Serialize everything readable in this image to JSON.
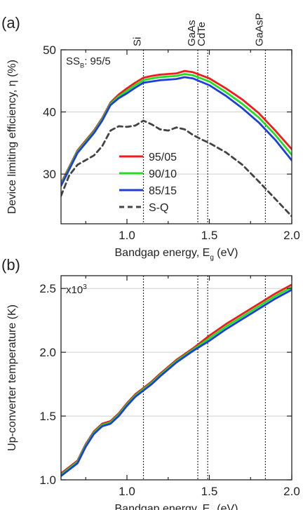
{
  "chart_data": [
    {
      "panel": "(a)",
      "type": "line",
      "xlabel": "Bandgap energy, E",
      "xlabel_sub": "g",
      "xlabel_unit": " (eV)",
      "ylabel": "Device limiting efficiency, η (%)",
      "annotation": "SS",
      "annotation_sub": "B",
      "annotation_tail": ": 95/5",
      "xlim": [
        0.6,
        2.0
      ],
      "ylim": [
        22,
        50
      ],
      "xticks": [
        1.0,
        1.5,
        2.0
      ],
      "xtick_labels": [
        "1.0",
        "1.5",
        "2.0"
      ],
      "yticks": [
        30,
        40,
        50
      ],
      "ytick_labels": [
        "30",
        "40",
        "50"
      ],
      "grid": "horizontal",
      "legend_position": "bottom-left",
      "vlines": [
        {
          "x": 1.1,
          "label": "Si"
        },
        {
          "x": 1.43,
          "label": "GaAs"
        },
        {
          "x": 1.49,
          "label": "CdTe"
        },
        {
          "x": 1.84,
          "label": "GaAsP"
        }
      ],
      "series": [
        {
          "name": "95/05",
          "color": "#ee1c1c",
          "style": "solid",
          "x": [
            0.6,
            0.7,
            0.8,
            0.85,
            0.9,
            0.95,
            1.0,
            1.05,
            1.1,
            1.15,
            1.2,
            1.25,
            1.3,
            1.35,
            1.4,
            1.5,
            1.6,
            1.7,
            1.8,
            1.9,
            2.0
          ],
          "y": [
            28.5,
            33.8,
            37.0,
            39.0,
            41.5,
            42.8,
            43.8,
            44.7,
            45.5,
            45.8,
            46.0,
            46.1,
            46.2,
            46.6,
            46.4,
            45.4,
            43.8,
            42.0,
            39.8,
            37.0,
            34.0
          ]
        },
        {
          "name": "90/10",
          "color": "#22dd22",
          "style": "solid",
          "x": [
            0.6,
            0.7,
            0.8,
            0.85,
            0.9,
            0.95,
            1.0,
            1.05,
            1.1,
            1.15,
            1.2,
            1.25,
            1.3,
            1.35,
            1.4,
            1.5,
            1.6,
            1.7,
            1.8,
            1.9,
            2.0
          ],
          "y": [
            28.3,
            33.6,
            36.8,
            38.8,
            41.3,
            42.5,
            43.4,
            44.3,
            45.1,
            45.4,
            45.6,
            45.7,
            45.8,
            46.1,
            45.9,
            44.9,
            43.2,
            41.3,
            39.1,
            36.3,
            33.1
          ]
        },
        {
          "name": "85/15",
          "color": "#1c3fd9",
          "style": "solid",
          "x": [
            0.6,
            0.7,
            0.8,
            0.85,
            0.9,
            0.95,
            1.0,
            1.05,
            1.1,
            1.15,
            1.2,
            1.25,
            1.3,
            1.35,
            1.4,
            1.5,
            1.6,
            1.7,
            1.8,
            1.9,
            2.0
          ],
          "y": [
            28.1,
            33.4,
            36.6,
            38.6,
            41.1,
            42.2,
            43.0,
            43.9,
            44.7,
            44.9,
            45.1,
            45.2,
            45.3,
            45.6,
            45.4,
            44.3,
            42.6,
            40.6,
            38.3,
            35.5,
            32.2
          ]
        },
        {
          "name": "S-Q",
          "color": "#444444",
          "style": "dashed",
          "x": [
            0.6,
            0.65,
            0.7,
            0.8,
            0.85,
            0.9,
            0.95,
            1.0,
            1.05,
            1.1,
            1.15,
            1.2,
            1.25,
            1.3,
            1.35,
            1.4,
            1.45,
            1.5,
            1.6,
            1.7,
            1.8,
            1.9,
            2.0
          ],
          "y": [
            26.5,
            29.8,
            31.5,
            33.0,
            34.5,
            37.0,
            37.7,
            37.6,
            37.8,
            38.6,
            38.0,
            37.2,
            37.0,
            37.5,
            37.2,
            36.3,
            35.6,
            35.0,
            33.5,
            31.5,
            28.8,
            26.0,
            23.2
          ]
        }
      ]
    },
    {
      "panel": "(b)",
      "type": "line",
      "xlabel": "Bandgap energy, E",
      "xlabel_sub": "g",
      "xlabel_unit": " (eV)",
      "ylabel": "Up-converter temperature (K)",
      "multiplier": "x10",
      "multiplier_exp": "3",
      "xlim": [
        0.6,
        2.0
      ],
      "ylim": [
        1.0,
        2.6
      ],
      "xticks": [
        1.0,
        1.5,
        2.0
      ],
      "xtick_labels": [
        "1.0",
        "1.5",
        "2.0"
      ],
      "yticks": [
        1.0,
        1.5,
        2.0,
        2.5
      ],
      "ytick_labels": [
        "1.0",
        "1.5",
        "2.0",
        "2.5"
      ],
      "grid": "horizontal",
      "vlines": [
        {
          "x": 1.1,
          "label": ""
        },
        {
          "x": 1.43,
          "label": ""
        },
        {
          "x": 1.49,
          "label": ""
        },
        {
          "x": 1.84,
          "label": ""
        }
      ],
      "series": [
        {
          "name": "",
          "color": "#ee1c1c",
          "style": "solid",
          "x": [
            0.6,
            0.65,
            0.7,
            0.75,
            0.8,
            0.85,
            0.9,
            0.95,
            1.0,
            1.05,
            1.1,
            1.15,
            1.2,
            1.3,
            1.4,
            1.5,
            1.6,
            1.7,
            1.8,
            1.9,
            2.0
          ],
          "y": [
            1.05,
            1.1,
            1.15,
            1.28,
            1.38,
            1.44,
            1.46,
            1.52,
            1.6,
            1.67,
            1.72,
            1.77,
            1.83,
            1.94,
            2.03,
            2.13,
            2.22,
            2.3,
            2.38,
            2.46,
            2.53
          ]
        },
        {
          "name": "",
          "color": "#22dd22",
          "style": "solid",
          "x": [
            0.6,
            0.65,
            0.7,
            0.75,
            0.8,
            0.85,
            0.9,
            0.95,
            1.0,
            1.05,
            1.1,
            1.15,
            1.2,
            1.3,
            1.4,
            1.5,
            1.6,
            1.7,
            1.8,
            1.9,
            2.0
          ],
          "y": [
            1.04,
            1.09,
            1.14,
            1.27,
            1.37,
            1.43,
            1.45,
            1.51,
            1.59,
            1.66,
            1.71,
            1.76,
            1.82,
            1.93,
            2.02,
            2.11,
            2.2,
            2.28,
            2.36,
            2.44,
            2.51
          ]
        },
        {
          "name": "",
          "color": "#1c3fd9",
          "style": "solid",
          "x": [
            0.6,
            0.65,
            0.7,
            0.75,
            0.8,
            0.85,
            0.9,
            0.95,
            1.0,
            1.05,
            1.1,
            1.15,
            1.2,
            1.3,
            1.4,
            1.5,
            1.6,
            1.7,
            1.8,
            1.9,
            2.0
          ],
          "y": [
            1.03,
            1.08,
            1.13,
            1.26,
            1.36,
            1.42,
            1.44,
            1.5,
            1.58,
            1.65,
            1.7,
            1.75,
            1.81,
            1.92,
            2.01,
            2.09,
            2.18,
            2.26,
            2.34,
            2.42,
            2.49
          ]
        }
      ]
    }
  ]
}
